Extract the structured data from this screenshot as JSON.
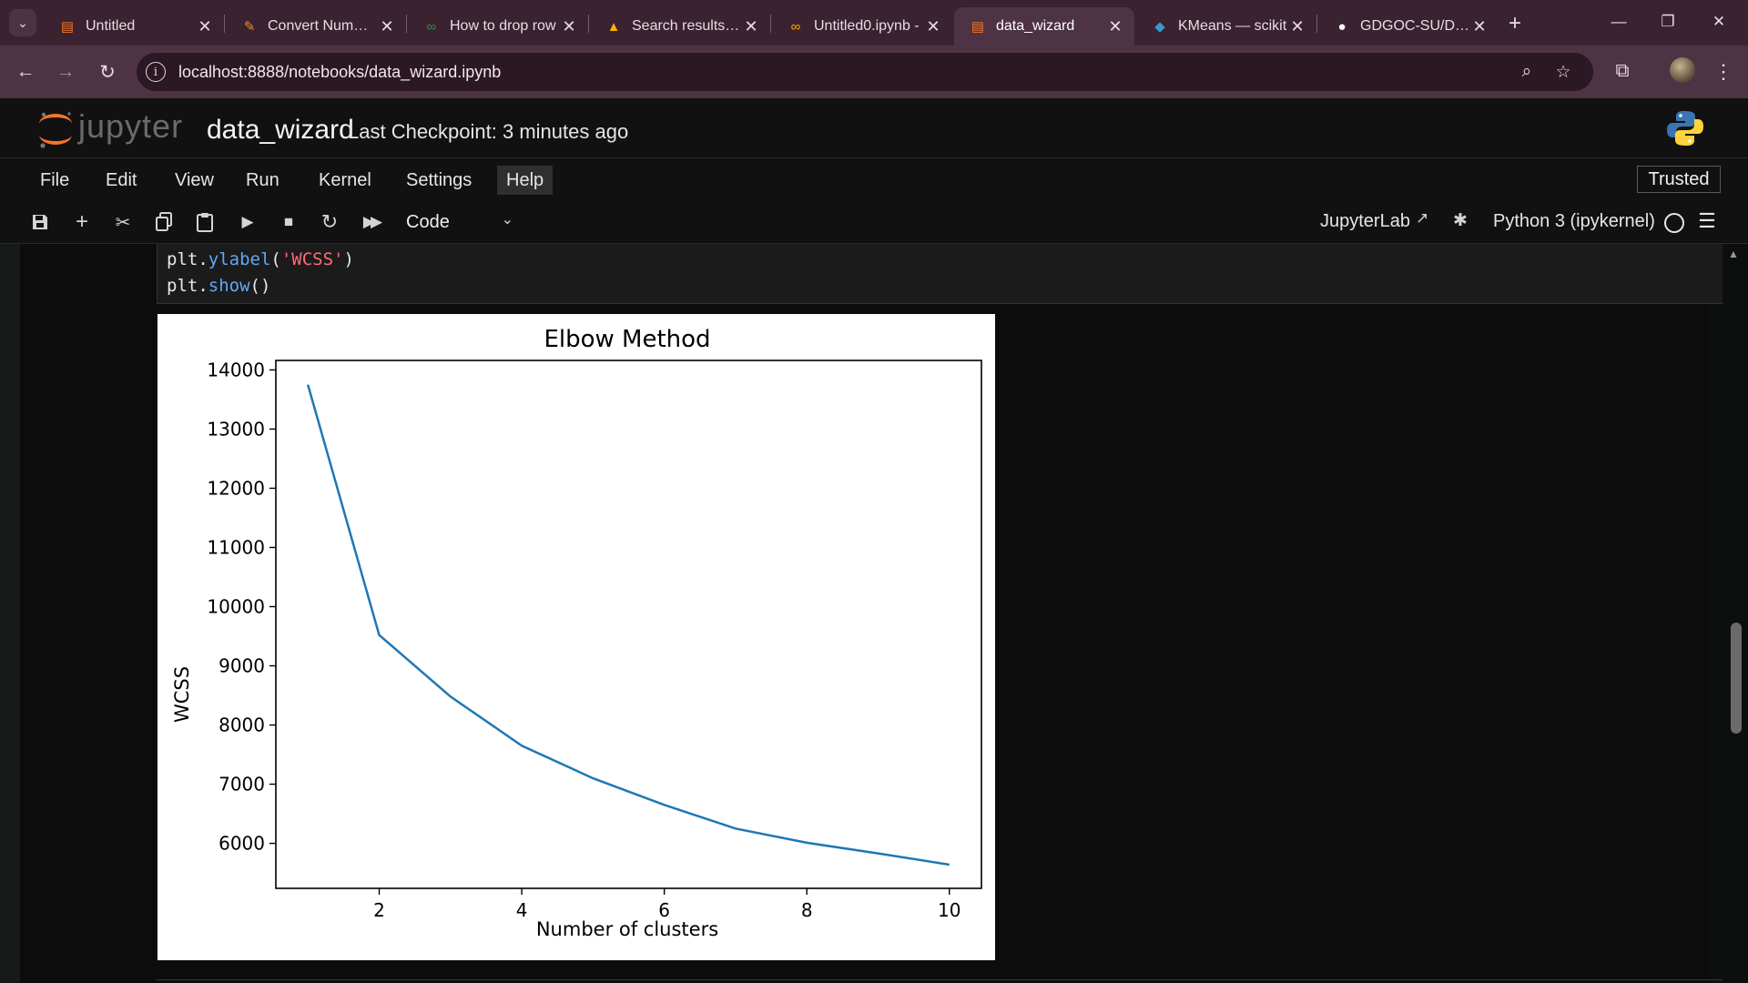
{
  "browser": {
    "tabs": [
      {
        "label": "Untitled",
        "icon": "jupyter-notebook-icon",
        "icon_glyph": "▤",
        "icon_color": "#f37726"
      },
      {
        "label": "Convert NumPy a",
        "icon": "feather-icon",
        "icon_glyph": "✎",
        "icon_color": "#f08a33"
      },
      {
        "label": "How to drop row",
        "icon": "geeksforgeeks-icon",
        "icon_glyph": "∞",
        "icon_color": "#2f8d46"
      },
      {
        "label": "Search results - G",
        "icon": "google-drive-icon",
        "icon_glyph": "▲",
        "icon_color": "#f4b400"
      },
      {
        "label": "Untitled0.ipynb -",
        "icon": "colab-icon",
        "icon_glyph": "∞",
        "icon_color": "#f9ab00"
      },
      {
        "label": "data_wizard",
        "icon": "jupyter-notebook-icon",
        "icon_glyph": "▤",
        "icon_color": "#f37726",
        "active": true
      },
      {
        "label": "KMeans — scikit",
        "icon": "scikit-learn-icon",
        "icon_glyph": "◆",
        "icon_color": "#3499cd"
      },
      {
        "label": "GDGOC-SU/Data",
        "icon": "github-icon",
        "icon_glyph": "●",
        "icon_color": "#ffffff"
      }
    ],
    "url": "localhost:8888/notebooks/data_wizard.ipynb"
  },
  "jupyter": {
    "logo_text": "jupyter",
    "notebook_title": "data_wizard",
    "checkpoint": "Last Checkpoint: 3 minutes ago",
    "menu": [
      "File",
      "Edit",
      "View",
      "Run",
      "Kernel",
      "Settings",
      "Help"
    ],
    "trusted": "Trusted",
    "cell_type": "Code",
    "jupyterlab_label": "JupyterLab",
    "kernel_label": "Python 3 (ipykernel)"
  },
  "code": {
    "line1_obj": "plt.",
    "line1_fn": "ylabel",
    "line1_open": "(",
    "line1_str": "'WCSS'",
    "line1_close": ")",
    "line2_obj": "plt.",
    "line2_fn": "show",
    "line2_rest": "()"
  },
  "chart_data": {
    "type": "line",
    "title": "Elbow Method",
    "xlabel": "Number of clusters",
    "ylabel": "WCSS",
    "x": [
      1,
      2,
      3,
      4,
      5,
      6,
      7,
      8,
      9,
      10
    ],
    "series": [
      {
        "values": [
          13750,
          9520,
          8480,
          7650,
          7100,
          6650,
          6250,
          6010,
          5830,
          5640
        ],
        "color": "#1f77b4"
      }
    ],
    "xlim": [
      0.55,
      10.45
    ],
    "ylim": [
      5240,
      14160
    ],
    "xticks": [
      2,
      4,
      6,
      8,
      10
    ],
    "yticks": [
      6000,
      7000,
      8000,
      9000,
      10000,
      11000,
      12000,
      13000,
      14000
    ],
    "grid": false
  }
}
